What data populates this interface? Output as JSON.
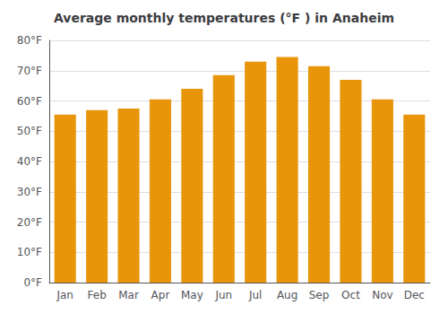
{
  "chart_data": {
    "type": "bar",
    "title": "Average monthly temperatures (°F ) in Anaheim",
    "categories": [
      "Jan",
      "Feb",
      "Mar",
      "Apr",
      "May",
      "Jun",
      "Jul",
      "Aug",
      "Sep",
      "Oct",
      "Nov",
      "Dec"
    ],
    "values": [
      55.5,
      57.0,
      57.5,
      60.5,
      64.0,
      68.5,
      73.0,
      74.5,
      71.5,
      67.0,
      60.5,
      55.5
    ],
    "color": "#E8950A",
    "ylim": [
      0,
      80
    ],
    "yticks": [
      {
        "value": 0,
        "label": "0°F"
      },
      {
        "value": 10,
        "label": "10°F"
      },
      {
        "value": 20,
        "label": "20°F"
      },
      {
        "value": 30,
        "label": "30°F"
      },
      {
        "value": 40,
        "label": "40°F"
      },
      {
        "value": 50,
        "label": "50°F"
      },
      {
        "value": 60,
        "label": "60°F"
      },
      {
        "value": 70,
        "label": "70°F"
      },
      {
        "value": 80,
        "label": "80°F"
      }
    ],
    "grid": true
  }
}
